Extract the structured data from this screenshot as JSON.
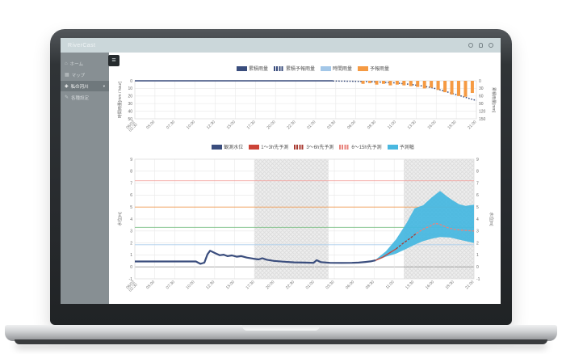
{
  "app": {
    "title": "RiverCast",
    "menu_toggle_glyph": "≡",
    "header_icons": [
      {
        "name": "help-icon"
      },
      {
        "name": "notifications-icon"
      },
      {
        "name": "settings-icon"
      }
    ],
    "sidebar": {
      "items": [
        {
          "label": "ホーム",
          "icon": "home-icon",
          "glyph": "⌂",
          "active": false
        },
        {
          "label": "マップ",
          "icon": "map-icon",
          "glyph": "▦",
          "active": false
        },
        {
          "label": "私の河川",
          "icon": "river-icon",
          "glyph": "◈",
          "active": true,
          "chevron": "▾"
        },
        {
          "label": "各種設定",
          "icon": "edit-icon",
          "glyph": "✎",
          "active": false
        }
      ]
    }
  },
  "colors": {
    "navy": "#3a4d7d",
    "light_blue": "#a3c7e8",
    "orange": "#f59a43",
    "red": "#cc4337",
    "dark_red": "#a93a30",
    "pink": "#e8837c",
    "cyan": "#49b8e0",
    "header_bg": "#cbd7da",
    "sidebar_bg": "#878f93"
  },
  "chart_data": [
    {
      "type": "bar+line",
      "title": "",
      "x_labels": [
        "06/02 02:30",
        "05:00",
        "07:30",
        "10:00",
        "12:30",
        "15:00",
        "17:30",
        "20:00",
        "22:30",
        "01:00",
        "03:30",
        "06:00",
        "08:30",
        "11:00",
        "13:30",
        "16:00",
        "18:30",
        "21:00"
      ],
      "y_left": {
        "label": "時間雨量[mm / hour]",
        "ticks": [
          0,
          10,
          20,
          30,
          40,
          50
        ],
        "range": [
          0,
          50
        ],
        "inverted": true
      },
      "y_right": {
        "label": "累積雨量[mm]",
        "ticks": [
          0,
          30,
          60,
          90,
          120,
          150
        ],
        "range": [
          0,
          150
        ],
        "inverted": true
      },
      "grid": true,
      "legend_position": "top",
      "legend": [
        {
          "label": "累積雨量",
          "color": "#3a4d7d",
          "style": "solid"
        },
        {
          "label": "累積予報雨量",
          "color": "#3a4d7d",
          "style": "dashed"
        },
        {
          "label": "時間雨量",
          "color": "#a3c7e8",
          "style": "solid"
        },
        {
          "label": "予報雨量",
          "color": "#f59a43",
          "style": "solid"
        }
      ],
      "series": [
        {
          "name": "累積雨量",
          "kind": "line",
          "axis": "right",
          "style": "solid",
          "color": "#3a4d7d",
          "points": [
            [
              0,
              0
            ],
            [
              0.58,
              0
            ]
          ]
        },
        {
          "name": "累積予報雨量",
          "kind": "line",
          "axis": "right",
          "style": "dotted",
          "color": "#3a4d7d",
          "points": [
            [
              0.58,
              0.5
            ],
            [
              0.63,
              1.5
            ],
            [
              0.68,
              3
            ],
            [
              0.72,
              5
            ],
            [
              0.76,
              8
            ],
            [
              0.8,
              13
            ],
            [
              0.84,
              20
            ],
            [
              0.87,
              27
            ],
            [
              0.9,
              38
            ],
            [
              0.93,
              50
            ],
            [
              0.96,
              62
            ],
            [
              0.98,
              70
            ],
            [
              1.0,
              78
            ]
          ]
        },
        {
          "name": "予報雨量",
          "kind": "bar",
          "axis": "left",
          "color": "#f59a43",
          "bars": [
            {
              "x": 0.668,
              "v": 4
            },
            {
              "x": 0.688,
              "v": 3
            },
            {
              "x": 0.708,
              "v": 5
            },
            {
              "x": 0.728,
              "v": 4
            },
            {
              "x": 0.748,
              "v": 6
            },
            {
              "x": 0.768,
              "v": 5
            },
            {
              "x": 0.788,
              "v": 6
            },
            {
              "x": 0.808,
              "v": 7
            },
            {
              "x": 0.828,
              "v": 8
            },
            {
              "x": 0.848,
              "v": 10
            },
            {
              "x": 0.868,
              "v": 9
            },
            {
              "x": 0.888,
              "v": 12
            },
            {
              "x": 0.908,
              "v": 15
            },
            {
              "x": 0.928,
              "v": 18
            },
            {
              "x": 0.948,
              "v": 20
            },
            {
              "x": 0.968,
              "v": 21
            },
            {
              "x": 0.988,
              "v": 16
            }
          ]
        }
      ]
    },
    {
      "type": "line+band",
      "title": "",
      "x_labels": [
        "06/02 02:30",
        "05:00",
        "07:30",
        "10:00",
        "12:30",
        "15:00",
        "17:30",
        "20:00",
        "22:30",
        "01:00",
        "03:30",
        "06:00",
        "08:30",
        "11:00",
        "13:30",
        "16:00",
        "18:30",
        "21:00"
      ],
      "y_left": {
        "label": "水位[m]",
        "ticks": [
          9,
          8,
          7,
          6,
          5,
          4,
          3,
          2,
          1,
          0,
          -1
        ],
        "range": [
          -1,
          9
        ]
      },
      "y_right": {
        "label": "水位[m]",
        "ticks": [
          9,
          8,
          7,
          6,
          5,
          4,
          3,
          2,
          1,
          0,
          -1
        ],
        "range": [
          -1,
          9
        ]
      },
      "grid": true,
      "legend_position": "top",
      "legend": [
        {
          "label": "観測水位",
          "color": "#3a4d7d",
          "style": "solid"
        },
        {
          "label": "1〜3h先予測",
          "color": "#cc4337",
          "style": "solid"
        },
        {
          "label": "3〜6h先予測",
          "color": "#a93a30",
          "style": "dashed"
        },
        {
          "label": "6〜15h先予測",
          "color": "#e8837c",
          "style": "dashed"
        },
        {
          "label": "予測幅",
          "color": "#49b8e0",
          "style": "solid"
        }
      ],
      "reference_lines": [
        {
          "value": 7.2,
          "color": "#f2a19b"
        },
        {
          "value": 5.0,
          "color": "#f09a52"
        },
        {
          "value": 3.3,
          "color": "#7cbf85"
        },
        {
          "value": 1.85,
          "color": "#abceec"
        }
      ],
      "shaded_bands": [
        {
          "from": 0.352,
          "to": 0.571
        },
        {
          "from": 0.793,
          "to": 1.0
        }
      ],
      "band": {
        "name": "予測幅",
        "color": "#49b8e0",
        "upper": [
          [
            0.71,
            0.6
          ],
          [
            0.74,
            1.3
          ],
          [
            0.77,
            2.3
          ],
          [
            0.8,
            3.6
          ],
          [
            0.825,
            4.9
          ],
          [
            0.85,
            5.15
          ],
          [
            0.875,
            5.8
          ],
          [
            0.9,
            6.35
          ],
          [
            0.92,
            5.9
          ],
          [
            0.935,
            5.6
          ],
          [
            0.955,
            5.25
          ],
          [
            0.975,
            5.1
          ],
          [
            1.0,
            5.2
          ]
        ],
        "lower": [
          [
            0.71,
            0.5
          ],
          [
            0.74,
            0.85
          ],
          [
            0.77,
            1.1
          ],
          [
            0.8,
            1.5
          ],
          [
            0.825,
            1.85
          ],
          [
            0.85,
            2.15
          ],
          [
            0.875,
            2.35
          ],
          [
            0.9,
            2.5
          ],
          [
            0.93,
            2.45
          ],
          [
            0.96,
            2.25
          ],
          [
            1.0,
            2.0
          ]
        ]
      },
      "series": [
        {
          "name": "観測水位",
          "kind": "line",
          "style": "solid",
          "color": "#3a4d7d",
          "width": 2.2,
          "points": [
            [
              0,
              0.45
            ],
            [
              0.06,
              0.45
            ],
            [
              0.12,
              0.45
            ],
            [
              0.18,
              0.45
            ],
            [
              0.193,
              0.26
            ],
            [
              0.205,
              0.35
            ],
            [
              0.214,
              1.05
            ],
            [
              0.222,
              1.35
            ],
            [
              0.235,
              1.17
            ],
            [
              0.25,
              0.97
            ],
            [
              0.262,
              1.02
            ],
            [
              0.273,
              0.9
            ],
            [
              0.286,
              0.96
            ],
            [
              0.3,
              0.85
            ],
            [
              0.314,
              0.9
            ],
            [
              0.33,
              0.78
            ],
            [
              0.35,
              0.68
            ],
            [
              0.365,
              0.62
            ],
            [
              0.376,
              0.72
            ],
            [
              0.388,
              0.6
            ],
            [
              0.41,
              0.5
            ],
            [
              0.44,
              0.43
            ],
            [
              0.47,
              0.38
            ],
            [
              0.5,
              0.36
            ],
            [
              0.527,
              0.34
            ],
            [
              0.536,
              0.56
            ],
            [
              0.548,
              0.4
            ],
            [
              0.575,
              0.34
            ],
            [
              0.61,
              0.33
            ],
            [
              0.64,
              0.34
            ],
            [
              0.66,
              0.36
            ],
            [
              0.68,
              0.41
            ],
            [
              0.695,
              0.46
            ],
            [
              0.71,
              0.55
            ]
          ]
        },
        {
          "name": "予測水位",
          "kind": "line",
          "width": 1.3,
          "points": [
            [
              0.71,
              0.55
            ],
            [
              0.73,
              0.8
            ],
            [
              0.75,
              1.15
            ],
            [
              0.77,
              1.5
            ],
            [
              0.79,
              1.95
            ],
            [
              0.81,
              2.35
            ],
            [
              0.83,
              2.8
            ],
            [
              0.85,
              3.15
            ],
            [
              0.87,
              3.4
            ],
            [
              0.885,
              3.65
            ],
            [
              0.9,
              3.55
            ],
            [
              0.92,
              3.3
            ],
            [
              0.94,
              3.15
            ],
            [
              0.97,
              3.05
            ],
            [
              1.0,
              3.0
            ]
          ],
          "segments": [
            {
              "name": "1〜3h先予測",
              "from": 0.71,
              "to": 0.77,
              "color": "#cc4337",
              "style": "solid"
            },
            {
              "name": "3〜6h先予測",
              "from": 0.77,
              "to": 0.83,
              "color": "#a93a30",
              "style": "dashed"
            },
            {
              "name": "6〜15h先予測",
              "from": 0.83,
              "to": 1.0,
              "color": "#e8837c",
              "style": "dashed"
            }
          ]
        }
      ]
    }
  ]
}
